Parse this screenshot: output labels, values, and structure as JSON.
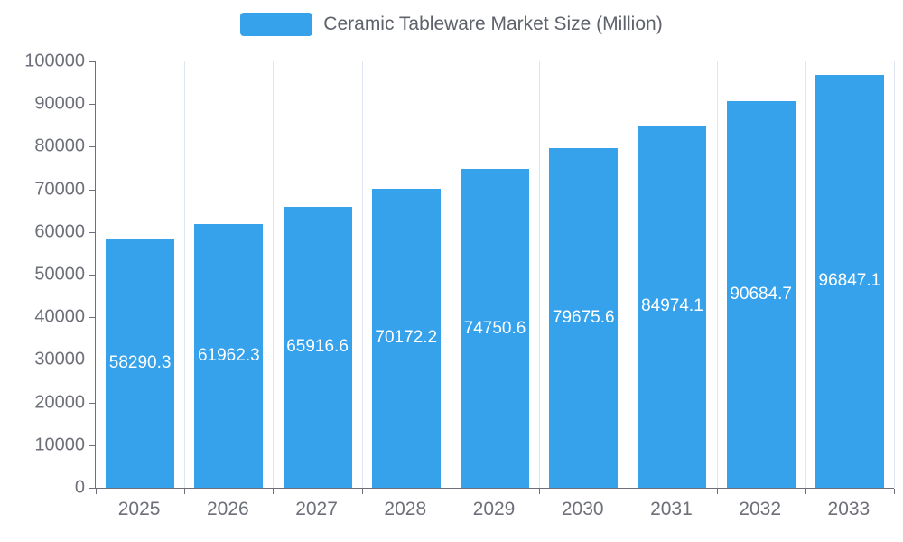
{
  "legend": {
    "label": "Ceramic Tableware Market Size (Million)"
  },
  "chart_data": {
    "type": "bar",
    "title": "Ceramic Tableware Market Size (Million)",
    "categories": [
      "2025",
      "2026",
      "2027",
      "2028",
      "2029",
      "2030",
      "2031",
      "2032",
      "2033"
    ],
    "values": [
      58290.3,
      61962.3,
      65916.6,
      70172.2,
      74750.6,
      79675.6,
      84974.1,
      90684.7,
      96847.1
    ],
    "value_labels": [
      "58290.3",
      "61962.3",
      "65916.6",
      "70172.2",
      "74750.6",
      "79675.6",
      "84974.1",
      "90684.7",
      "96847.1"
    ],
    "xlabel": "",
    "ylabel": "",
    "ylim": [
      0,
      100000
    ],
    "y_ticks": [
      0,
      10000,
      20000,
      30000,
      40000,
      50000,
      60000,
      70000,
      80000,
      90000,
      100000
    ],
    "grid": "vertical-splitlines",
    "legend_position": "top-center",
    "label_position": "inside-center",
    "bar_color": "#36A2EB",
    "label_color": "#ffffff",
    "axis_color": "#6E7079",
    "grid_color": "#E0E6F1",
    "text_color": "#6E7079"
  }
}
